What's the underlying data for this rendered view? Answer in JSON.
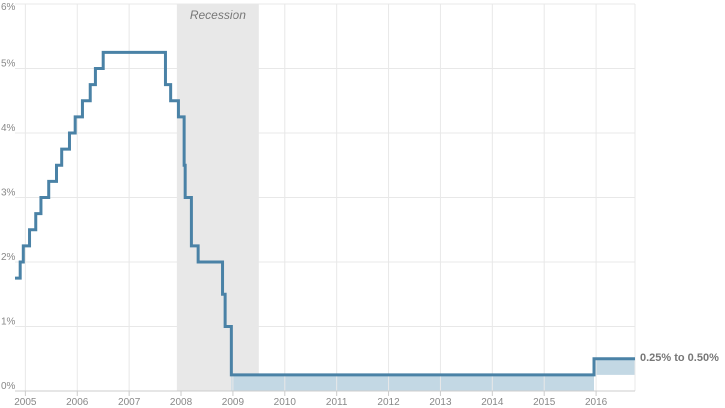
{
  "chart_data": {
    "type": "line",
    "title": "",
    "xlabel": "",
    "ylabel": "",
    "x_ticks": [
      "2005",
      "2006",
      "2007",
      "2008",
      "2009",
      "2010",
      "2011",
      "2012",
      "2013",
      "2014",
      "2015",
      "2016"
    ],
    "y_ticks": [
      "0%",
      "1%",
      "2%",
      "3%",
      "4%",
      "5%",
      "6%"
    ],
    "ylim": [
      0,
      6
    ],
    "xlim": [
      2004.8,
      2016.75
    ],
    "grid": true,
    "recession": {
      "label": "Recession",
      "start": 2007.92,
      "end": 2009.5
    },
    "series": [
      {
        "step": "after",
        "points": [
          [
            2004.8,
            1.75
          ],
          [
            2004.9,
            2.0
          ],
          [
            2004.96,
            2.25
          ],
          [
            2005.08,
            2.5
          ],
          [
            2005.2,
            2.75
          ],
          [
            2005.3,
            3.0
          ],
          [
            2005.45,
            3.25
          ],
          [
            2005.6,
            3.5
          ],
          [
            2005.7,
            3.75
          ],
          [
            2005.85,
            4.0
          ],
          [
            2005.96,
            4.25
          ],
          [
            2006.1,
            4.5
          ],
          [
            2006.25,
            4.75
          ],
          [
            2006.35,
            5.0
          ],
          [
            2006.5,
            5.25
          ],
          [
            2007.7,
            4.75
          ],
          [
            2007.8,
            4.5
          ],
          [
            2007.95,
            4.25
          ],
          [
            2008.06,
            3.5
          ],
          [
            2008.08,
            3.0
          ],
          [
            2008.2,
            2.25
          ],
          [
            2008.33,
            2.0
          ],
          [
            2008.8,
            1.5
          ],
          [
            2008.85,
            1.0
          ],
          [
            2008.97,
            0.25
          ],
          [
            2015.96,
            0.5
          ],
          [
            2016.75,
            0.5
          ]
        ]
      }
    ],
    "current_range": {
      "label": "0.25% to 0.50%",
      "low": 0.25,
      "high": 0.5,
      "shade_from": 2008.97
    },
    "colors": {
      "line": "#4a82a6",
      "band": "#c3d8e4",
      "recession": "#e8e8e8",
      "grid": "#e8e8e8"
    }
  }
}
